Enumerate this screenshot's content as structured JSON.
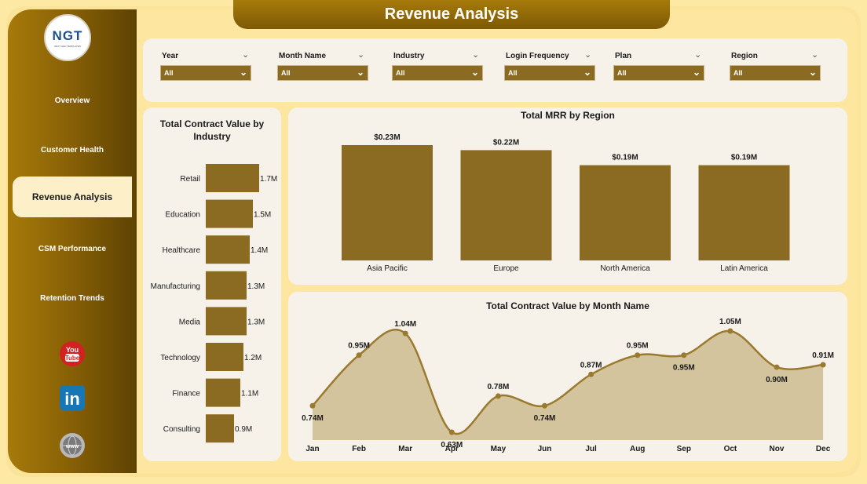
{
  "page_title": "Revenue Analysis",
  "logo": {
    "text": "NGT",
    "subtext": "NEXT GEN TEMPLATES"
  },
  "nav": {
    "items": [
      {
        "label": "Overview",
        "active": false
      },
      {
        "label": "Customer Health",
        "active": false
      },
      {
        "label": "Revenue Analysis",
        "active": true
      },
      {
        "label": "CSM Performance",
        "active": false
      },
      {
        "label": "Retention Trends",
        "active": false
      }
    ],
    "social": [
      {
        "icon": "youtube-icon",
        "label": "You Tube"
      },
      {
        "icon": "linkedin-icon",
        "label": "in"
      },
      {
        "icon": "website-icon",
        "label": "www"
      }
    ]
  },
  "filters": [
    {
      "label": "Year",
      "value": "All"
    },
    {
      "label": "Month Name",
      "value": "All"
    },
    {
      "label": "Industry",
      "value": "All"
    },
    {
      "label": "Login Frequency",
      "value": "All"
    },
    {
      "label": "Plan",
      "value": "All"
    },
    {
      "label": "Region",
      "value": "All"
    }
  ],
  "colors": {
    "bar": "#8b6b22",
    "line": "#9a7a2e",
    "area": "#d4c49d",
    "accent": "#a67a0a"
  },
  "chart_data": [
    {
      "type": "bar",
      "orientation": "horizontal",
      "title": "Total Contract Value by Industry",
      "categories": [
        "Retail",
        "Education",
        "Healthcare",
        "Manufacturing",
        "Media",
        "Technology",
        "Finance",
        "Consulting"
      ],
      "values": [
        1.7,
        1.5,
        1.4,
        1.3,
        1.3,
        1.2,
        1.1,
        0.9
      ],
      "data_labels": [
        "1.7M",
        "1.5M",
        "1.4M",
        "1.3M",
        "1.3M",
        "1.2M",
        "1.1M",
        "0.9M"
      ]
    },
    {
      "type": "bar",
      "title": "Total MRR by Region",
      "categories": [
        "Asia Pacific",
        "Europe",
        "North America",
        "Latin America"
      ],
      "values": [
        0.23,
        0.22,
        0.19,
        0.19
      ],
      "data_labels": [
        "$0.23M",
        "$0.22M",
        "$0.19M",
        "$0.19M"
      ]
    },
    {
      "type": "area",
      "title": "Total Contract Value by Month Name",
      "categories": [
        "Jan",
        "Feb",
        "Mar",
        "Apr",
        "May",
        "Jun",
        "Jul",
        "Aug",
        "Sep",
        "Oct",
        "Nov",
        "Dec"
      ],
      "values": [
        0.74,
        0.95,
        1.04,
        0.63,
        0.78,
        0.74,
        0.87,
        0.95,
        0.95,
        1.05,
        0.9,
        0.91
      ],
      "data_labels": [
        "0.74M",
        "0.95M",
        "1.04M",
        "0.63M",
        "0.78M",
        "0.74M",
        "0.87M",
        "0.95M",
        "0.95M",
        "1.05M",
        "0.90M",
        "0.91M"
      ]
    }
  ]
}
